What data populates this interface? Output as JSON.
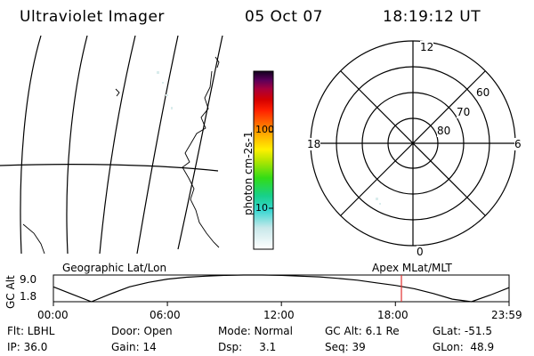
{
  "header": {
    "instrument": "Ultraviolet Imager",
    "date": "05 Oct 07",
    "time": "18:19:12 UT"
  },
  "colorbar": {
    "unit_label": "photon cm-2s-1",
    "ticks": [
      "100",
      "10"
    ],
    "colors": [
      "#ffffff",
      "#d9ecec",
      "#7fe3e6",
      "#2fd7c8",
      "#1fd27a",
      "#4fe000",
      "#b8e600",
      "#fff000",
      "#ffb000",
      "#ff7000",
      "#ff2000",
      "#d50000",
      "#a8003c",
      "#7d0070",
      "#3d0050",
      "#14002a"
    ]
  },
  "polar_plot": {
    "mlt_labels": {
      "top": "12",
      "left": "18",
      "right": "6",
      "bottom": "0"
    },
    "lat_labels": [
      "60",
      "70",
      "80"
    ]
  },
  "panel": {
    "left_label": "Geographic Lat/Lon",
    "right_label": "Apex MLat/MLT",
    "y_axis_label": "GC Alt",
    "y_ticks": [
      "9.0",
      "1.8"
    ],
    "x_ticks": [
      "00:00",
      "06:00",
      "12:00",
      "18:00",
      "23:59"
    ]
  },
  "status": {
    "row1": {
      "flt": "Flt: LBHL",
      "door": "Door: Open",
      "mode": "Mode: Normal",
      "gcalt": "GC Alt: 6.1 Re",
      "glat": "GLat: -51.5"
    },
    "row2": {
      "ip": "IP: 36.0",
      "gain": "Gain: 14",
      "dsp": "Dsp:     3.1",
      "seq": "Seq: 39",
      "glon": "GLon:  48.9"
    }
  },
  "chart_data": {
    "type": "line",
    "title": "",
    "xlabel": "",
    "ylabel": "GC Alt",
    "x_range": [
      "00:00",
      "23:59"
    ],
    "ylim": [
      1.8,
      9.0
    ],
    "series": [
      {
        "x": [
          "00:00",
          "01:00",
          "02:00",
          "03:00",
          "04:00",
          "05:00",
          "06:00",
          "07:00",
          "08:00",
          "09:00",
          "10:00",
          "11:00",
          "12:00",
          "13:00",
          "14:00",
          "15:00",
          "16:00",
          "17:00",
          "18:00",
          "19:00",
          "20:00",
          "21:00",
          "22:00",
          "23:00",
          "23:59"
        ],
        "y": [
          5.8,
          3.8,
          1.8,
          3.9,
          5.8,
          7.0,
          7.9,
          8.4,
          8.7,
          8.9,
          9.0,
          9.0,
          8.9,
          8.7,
          8.5,
          8.1,
          7.6,
          6.9,
          6.2,
          5.3,
          4.0,
          2.5,
          1.8,
          3.6,
          5.6
        ]
      }
    ],
    "current_time_marker": "18:19"
  }
}
